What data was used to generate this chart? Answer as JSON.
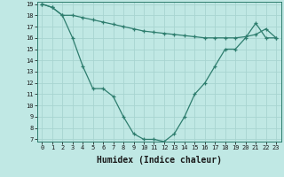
{
  "xlabel": "Humidex (Indice chaleur)",
  "x": [
    0,
    1,
    2,
    3,
    4,
    5,
    6,
    7,
    8,
    9,
    10,
    11,
    12,
    13,
    14,
    15,
    16,
    17,
    18,
    19,
    20,
    21,
    22,
    23
  ],
  "line1": [
    19,
    18.7,
    18,
    18,
    17.8,
    17.6,
    17.4,
    17.2,
    17.0,
    16.8,
    16.6,
    16.5,
    16.4,
    16.3,
    16.2,
    16.1,
    16.0,
    16.0,
    16.0,
    16.0,
    16.1,
    16.3,
    16.8,
    16.0
  ],
  "line2": [
    19,
    18.7,
    18,
    16,
    13.5,
    11.5,
    11.5,
    10.8,
    9,
    7.5,
    7,
    7,
    6.8,
    7.5,
    9,
    11,
    12,
    13.5,
    15,
    15,
    16,
    17.3,
    16,
    16
  ],
  "color": "#2e7d6e",
  "bg_color": "#c0e8e4",
  "grid_color": "#a8d4d0",
  "ylim_min": 7,
  "ylim_max": 19,
  "yticks": [
    7,
    8,
    9,
    10,
    11,
    12,
    13,
    14,
    15,
    16,
    17,
    18,
    19
  ],
  "xticks": [
    0,
    1,
    2,
    3,
    4,
    5,
    6,
    7,
    8,
    9,
    10,
    11,
    12,
    13,
    14,
    15,
    16,
    17,
    18,
    19,
    20,
    21,
    22,
    23
  ],
  "xlabel_fontsize": 7,
  "tick_fontsize": 5,
  "xlabel_fontweight": "bold"
}
